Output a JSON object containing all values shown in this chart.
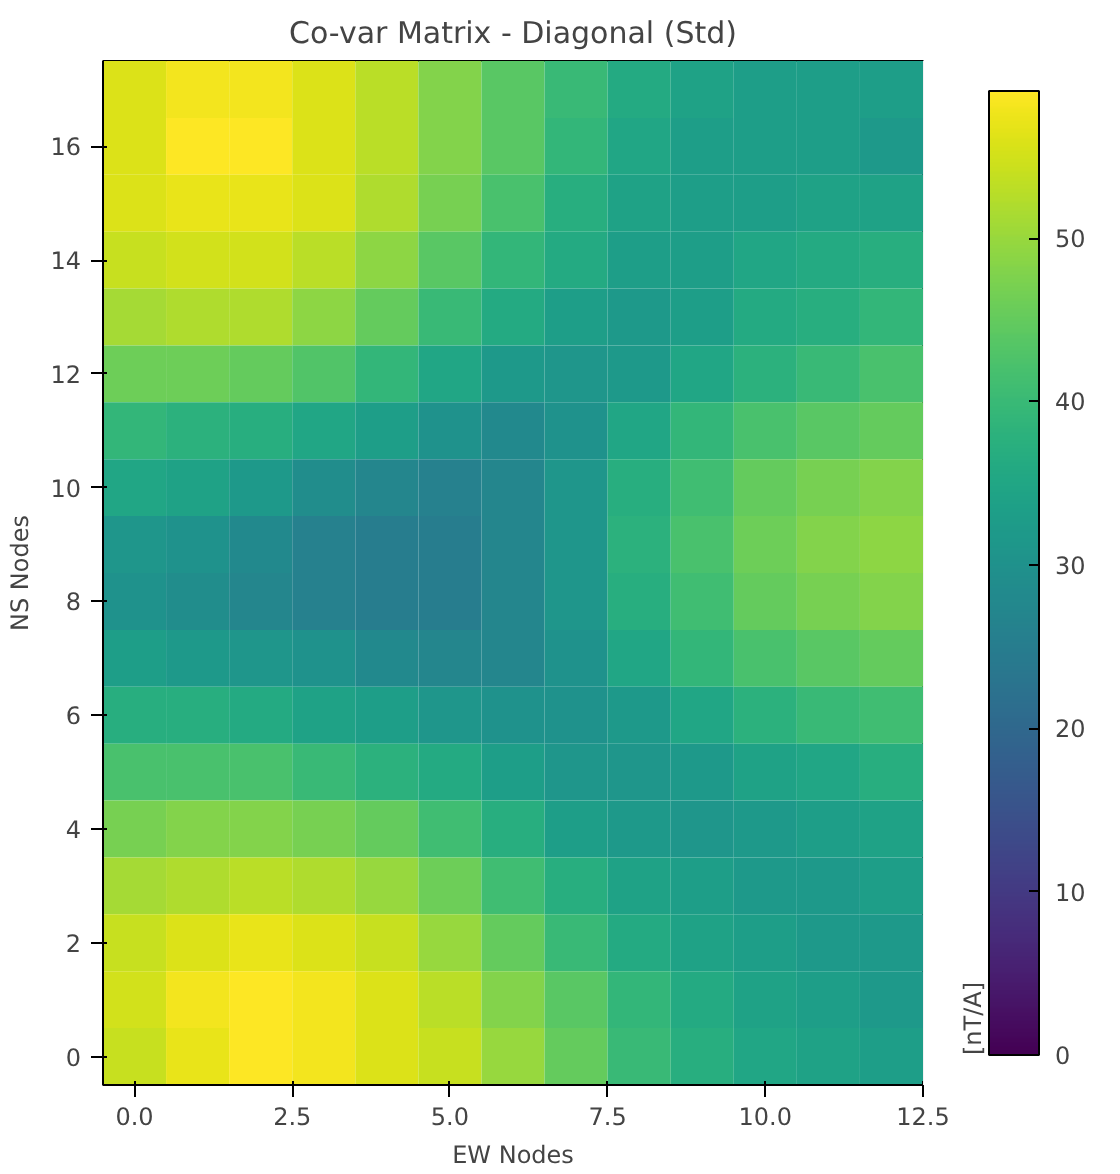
{
  "chart_data": {
    "type": "heatmap",
    "title": "Co-var Matrix - Diagonal (Std)",
    "xlabel": "EW Nodes",
    "ylabel": "NS Nodes",
    "clabel": "[nT/A]",
    "x": [
      0,
      1,
      2,
      3,
      4,
      5,
      6,
      7,
      8,
      9,
      10,
      11,
      12
    ],
    "y_categories": [
      null,
      "16",
      null,
      "14",
      null,
      "12",
      null,
      "10",
      null,
      "8",
      null,
      "6",
      null,
      "4",
      null,
      "2",
      null,
      "0"
    ],
    "xlim": [
      -0.5,
      12.5
    ],
    "xticks": [
      {
        "value": 0,
        "label": "0.0"
      },
      {
        "value": 2.5,
        "label": "2.5"
      },
      {
        "value": 5,
        "label": "5.0"
      },
      {
        "value": 7.5,
        "label": "7.5"
      },
      {
        "value": 10,
        "label": "10.0"
      },
      {
        "value": 12.5,
        "label": "12.5"
      }
    ],
    "clim": [
      0,
      59
    ],
    "cticks": [
      0,
      10,
      20,
      30,
      40,
      50
    ],
    "grid": false,
    "cells": [
      [
        56,
        58,
        58,
        56,
        53,
        48,
        44,
        40,
        36,
        34,
        33,
        33,
        33
      ],
      [
        56,
        59,
        59,
        56,
        53,
        48,
        44,
        39,
        35,
        33,
        33,
        33,
        32
      ],
      [
        56,
        57,
        57,
        56,
        52,
        47,
        42,
        37,
        34,
        33,
        33,
        34,
        34
      ],
      [
        54,
        55,
        55,
        53,
        49,
        44,
        39,
        36,
        33,
        33,
        35,
        36,
        37
      ],
      [
        51,
        52,
        52,
        49,
        45,
        40,
        36,
        33,
        32,
        33,
        36,
        37,
        39
      ],
      [
        46,
        46,
        45,
        43,
        39,
        35,
        32,
        31,
        32,
        35,
        38,
        40,
        42
      ],
      [
        39,
        38,
        37,
        35,
        33,
        30,
        28,
        30,
        35,
        39,
        42,
        44,
        45
      ],
      [
        35,
        34,
        32,
        29,
        27,
        26,
        27,
        31,
        37,
        41,
        45,
        47,
        48
      ],
      [
        31,
        30,
        28,
        26,
        25,
        25,
        27,
        31,
        38,
        42,
        46,
        48,
        49
      ],
      [
        30,
        29,
        27,
        26,
        25,
        25,
        27,
        31,
        37,
        41,
        45,
        47,
        48
      ],
      [
        33,
        32,
        31,
        30,
        28,
        27,
        27,
        30,
        35,
        39,
        42,
        44,
        45
      ],
      [
        37,
        37,
        36,
        34,
        33,
        31,
        30,
        30,
        32,
        35,
        38,
        40,
        41
      ],
      [
        42,
        42,
        42,
        40,
        38,
        36,
        33,
        31,
        31,
        32,
        34,
        35,
        37
      ],
      [
        47,
        48,
        48,
        47,
        45,
        41,
        37,
        33,
        32,
        31,
        32,
        33,
        34
      ],
      [
        51,
        52,
        53,
        52,
        50,
        46,
        41,
        37,
        34,
        33,
        32,
        32,
        33
      ],
      [
        54,
        56,
        57,
        56,
        54,
        50,
        45,
        40,
        36,
        34,
        33,
        32,
        32
      ],
      [
        55,
        58,
        59,
        58,
        56,
        53,
        48,
        44,
        39,
        36,
        34,
        33,
        32
      ],
      [
        54,
        57,
        59,
        58,
        56,
        54,
        50,
        45,
        40,
        37,
        35,
        34,
        33
      ]
    ]
  }
}
